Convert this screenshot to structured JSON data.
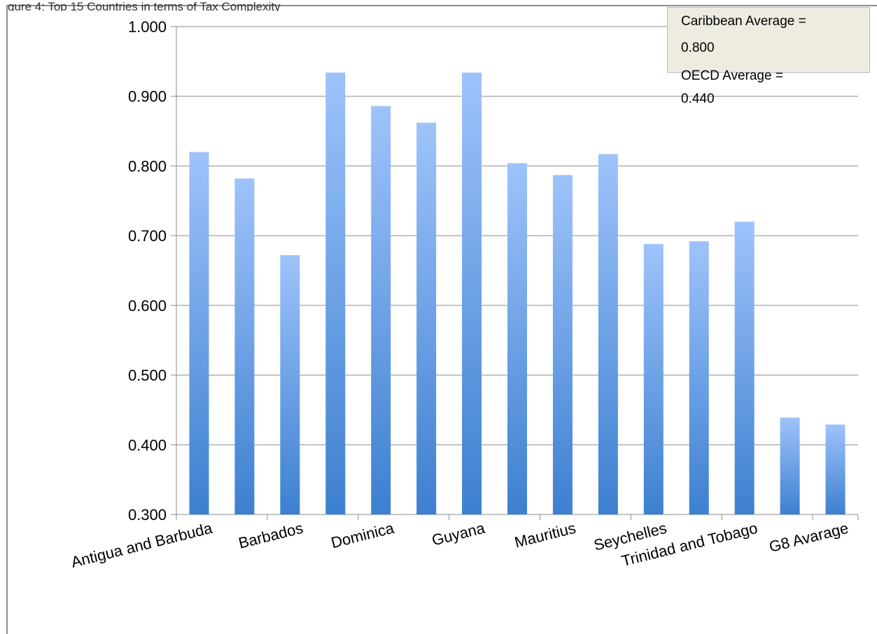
{
  "header_cut_text": "gure 4: Top 15 Countries in terms of Tax Complexity",
  "annotations": {
    "caribbean_label": "Caribbean Average =",
    "caribbean_value": "0.800",
    "oecd_label": "OECD Average =",
    "oecd_value": "0.440"
  },
  "chart_data": {
    "type": "bar",
    "title": "",
    "xlabel": "",
    "ylabel": "",
    "ylim": [
      0.3,
      1.0
    ],
    "yticks": [
      "0.300",
      "0.400",
      "0.500",
      "0.600",
      "0.700",
      "0.800",
      "0.900",
      "1.000"
    ],
    "grid": true,
    "bar_color_top": "#9ec3fb",
    "bar_color_bottom": "#3d80d0",
    "categories": [
      "Antigua and Barbuda",
      "",
      "Barbados",
      "",
      "Dominica",
      "",
      "Guyana",
      "",
      "Mauritius",
      "",
      "Seychelles",
      "",
      "Trinidad and Tobago",
      "",
      "G8 Avarage"
    ],
    "visible_category_labels": [
      "Antigua and Barbuda",
      "Barbados",
      "Dominica",
      "Guyana",
      "Mauritius",
      "Seychelles",
      "Trinidad and Tobago",
      "G8 Avarage"
    ],
    "values": [
      0.82,
      0.782,
      0.672,
      0.934,
      0.886,
      0.862,
      0.934,
      0.804,
      0.787,
      0.817,
      0.688,
      0.692,
      0.72,
      0.439,
      0.429
    ]
  }
}
